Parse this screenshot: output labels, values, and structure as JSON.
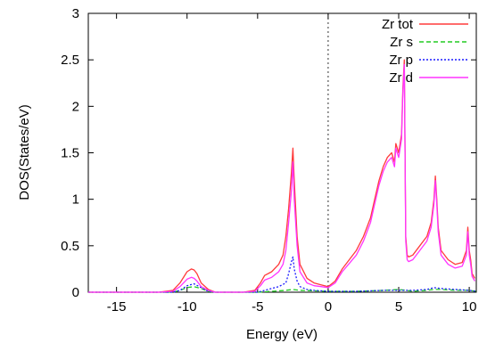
{
  "chart_data": {
    "type": "line",
    "title": "",
    "xlabel": "Energy (eV)",
    "ylabel": "DOS(States/eV)",
    "xlim": [
      -17,
      10.5
    ],
    "ylim": [
      0,
      3
    ],
    "x_ticks": [
      -15,
      -10,
      -5,
      0,
      5,
      10
    ],
    "x_tick_labels": [
      "-15",
      "-10",
      "-5",
      "0",
      "5",
      "10"
    ],
    "y_ticks": [
      0,
      0.5,
      1,
      1.5,
      2,
      2.5,
      3
    ],
    "y_tick_labels": [
      "0",
      "0.5",
      "1",
      "1.5",
      "2",
      "2.5",
      "3"
    ],
    "grid": false,
    "legend_position": "top-right",
    "fermi_level": 0,
    "fermi_line_style": "dotted",
    "series": [
      {
        "name": "Zr tot",
        "color": "#ff3b3b",
        "dash": "solid",
        "x": [
          -17,
          -12,
          -11,
          -10.5,
          -10,
          -9.7,
          -9.5,
          -9.3,
          -9.0,
          -8.5,
          -8,
          -7,
          -6,
          -5.2,
          -4.8,
          -4.5,
          -4.0,
          -3.5,
          -3.2,
          -3.0,
          -2.8,
          -2.6,
          -2.5,
          -2.4,
          -2.2,
          -2.0,
          -1.5,
          -1.0,
          -0.5,
          0,
          0.5,
          1.0,
          1.5,
          2.0,
          2.5,
          3.0,
          3.3,
          3.6,
          3.9,
          4.2,
          4.5,
          4.7,
          4.8,
          5.0,
          5.2,
          5.3,
          5.4,
          5.5,
          5.6,
          5.7,
          6.0,
          6.5,
          7.0,
          7.3,
          7.5,
          7.6,
          7.7,
          7.8,
          8.0,
          8.5,
          9.0,
          9.5,
          9.8,
          9.9,
          10.0,
          10.1,
          10.2,
          10.4
        ],
        "y": [
          0.0,
          0.0,
          0.02,
          0.1,
          0.22,
          0.25,
          0.24,
          0.2,
          0.1,
          0.03,
          0.0,
          0.0,
          0.0,
          0.02,
          0.1,
          0.18,
          0.22,
          0.3,
          0.4,
          0.6,
          0.9,
          1.3,
          1.55,
          1.2,
          0.6,
          0.3,
          0.15,
          0.1,
          0.08,
          0.06,
          0.12,
          0.25,
          0.35,
          0.45,
          0.6,
          0.8,
          1.0,
          1.2,
          1.35,
          1.45,
          1.5,
          1.4,
          1.6,
          1.5,
          1.7,
          2.2,
          2.5,
          0.6,
          0.4,
          0.38,
          0.4,
          0.5,
          0.6,
          0.75,
          1.0,
          1.25,
          1.0,
          0.7,
          0.45,
          0.35,
          0.3,
          0.32,
          0.45,
          0.7,
          0.45,
          0.35,
          0.2,
          0.15
        ]
      },
      {
        "name": "Zr s",
        "color": "#22cc22",
        "dash": "dashed",
        "x": [
          -17,
          -11,
          -10.5,
          -10,
          -9.5,
          -9,
          -8.5,
          -8,
          -5,
          -4,
          -3,
          -2.5,
          -2,
          0,
          2,
          4,
          5,
          5.5,
          6,
          7,
          7.5,
          8,
          9,
          10,
          10.5
        ],
        "y": [
          0.0,
          0.0,
          0.02,
          0.05,
          0.06,
          0.04,
          0.01,
          0.0,
          0.0,
          0.01,
          0.02,
          0.03,
          0.02,
          0.01,
          0.01,
          0.02,
          0.03,
          0.02,
          0.01,
          0.02,
          0.03,
          0.03,
          0.02,
          0.02,
          0.01
        ]
      },
      {
        "name": "Zr p",
        "color": "#1a1aff",
        "dash": "dotted",
        "x": [
          -17,
          -11,
          -10.5,
          -10,
          -9.5,
          -9,
          -8.5,
          -8,
          -5,
          -4.5,
          -4,
          -3.5,
          -3,
          -2.8,
          -2.6,
          -2.5,
          -2.4,
          -2.2,
          -2.0,
          -1.5,
          -1,
          0,
          2,
          4,
          5,
          5.5,
          6,
          7,
          7.5,
          8,
          9,
          10,
          10.5
        ],
        "y": [
          0.0,
          0.0,
          0.02,
          0.07,
          0.09,
          0.05,
          0.01,
          0.0,
          0.0,
          0.02,
          0.04,
          0.06,
          0.1,
          0.2,
          0.33,
          0.38,
          0.25,
          0.12,
          0.06,
          0.03,
          0.02,
          0.01,
          0.01,
          0.02,
          0.02,
          0.02,
          0.02,
          0.03,
          0.05,
          0.04,
          0.03,
          0.02,
          0.01
        ]
      },
      {
        "name": "Zr d",
        "color": "#ff33ff",
        "dash": "solid",
        "x": [
          -17,
          -12,
          -11,
          -10.5,
          -10,
          -9.7,
          -9.5,
          -9.3,
          -9.0,
          -8.5,
          -8,
          -7,
          -6,
          -5.2,
          -4.8,
          -4.5,
          -4.0,
          -3.5,
          -3.2,
          -3.0,
          -2.8,
          -2.6,
          -2.5,
          -2.4,
          -2.2,
          -2.0,
          -1.5,
          -1.0,
          -0.5,
          0,
          0.5,
          1.0,
          1.5,
          2.0,
          2.5,
          3.0,
          3.3,
          3.6,
          3.9,
          4.2,
          4.5,
          4.7,
          4.8,
          5.0,
          5.2,
          5.3,
          5.4,
          5.5,
          5.6,
          5.7,
          6.0,
          6.5,
          7.0,
          7.3,
          7.5,
          7.6,
          7.7,
          7.8,
          8.0,
          8.5,
          9.0,
          9.5,
          9.8,
          9.9,
          10.0,
          10.1,
          10.2,
          10.4
        ],
        "y": [
          0.0,
          0.0,
          0.01,
          0.06,
          0.14,
          0.16,
          0.15,
          0.12,
          0.06,
          0.02,
          0.0,
          0.0,
          0.0,
          0.01,
          0.07,
          0.13,
          0.16,
          0.22,
          0.3,
          0.45,
          0.75,
          1.1,
          1.4,
          1.0,
          0.5,
          0.22,
          0.1,
          0.07,
          0.06,
          0.05,
          0.1,
          0.22,
          0.31,
          0.4,
          0.55,
          0.75,
          0.95,
          1.15,
          1.3,
          1.4,
          1.45,
          1.35,
          1.55,
          1.45,
          1.65,
          2.15,
          2.45,
          0.55,
          0.35,
          0.33,
          0.35,
          0.45,
          0.55,
          0.7,
          0.95,
          1.2,
          0.95,
          0.65,
          0.4,
          0.3,
          0.26,
          0.28,
          0.4,
          0.65,
          0.4,
          0.3,
          0.17,
          0.12
        ]
      }
    ]
  }
}
